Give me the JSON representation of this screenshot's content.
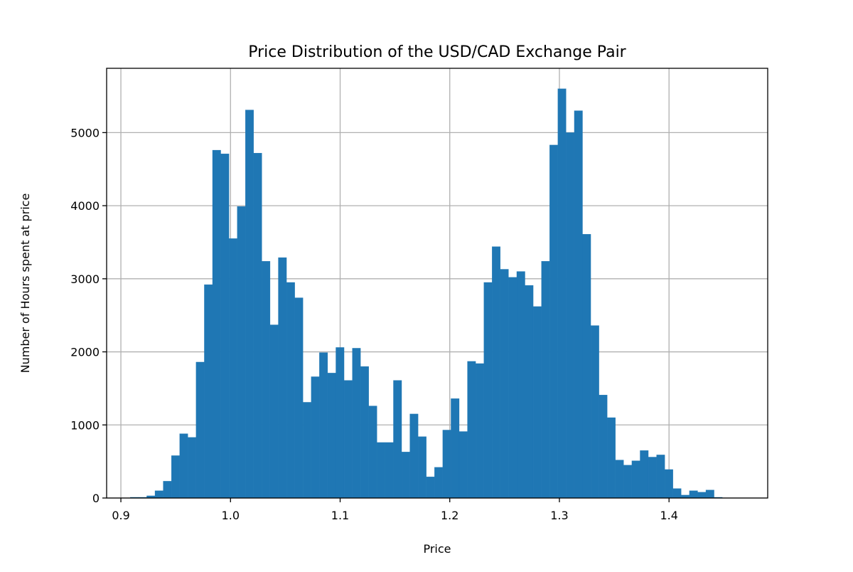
{
  "chart_data": {
    "type": "bar",
    "title": "Price Distribution of the USD/CAD Exchange Pair",
    "xlabel": "Price",
    "ylabel": "Number of Hours spent at price",
    "xlim": [
      0.887,
      1.49
    ],
    "ylim": [
      0,
      5880
    ],
    "grid": true,
    "bar_color": "#1f77b4",
    "grid_color": "#b0b0b0",
    "x_ticks": [
      0.9,
      1.0,
      1.1,
      1.2,
      1.3,
      1.4
    ],
    "x_tick_labels": [
      "0.9",
      "1.0",
      "1.1",
      "1.2",
      "1.3",
      "1.4"
    ],
    "y_ticks": [
      0,
      1000,
      2000,
      3000,
      4000,
      5000
    ],
    "y_tick_labels": [
      "0",
      "1000",
      "2000",
      "3000",
      "4000",
      "5000"
    ],
    "bins": {
      "start": 0.9086,
      "width": 0.0075,
      "values": [
        10,
        10,
        30,
        100,
        230,
        580,
        880,
        830,
        1860,
        2920,
        4760,
        4710,
        3550,
        3990,
        5310,
        4720,
        3240,
        2370,
        3290,
        2950,
        2740,
        1310,
        1660,
        1990,
        1710,
        2060,
        1610,
        2050,
        1800,
        1260,
        760,
        760,
        1610,
        630,
        1150,
        840,
        290,
        420,
        930,
        1360,
        910,
        1870,
        1840,
        2950,
        3440,
        3130,
        3020,
        3100,
        2910,
        2620,
        3240,
        4830,
        5600,
        5000,
        5300,
        3610,
        2360,
        1410,
        1100,
        520,
        450,
        510,
        650,
        560,
        590,
        390,
        130,
        40,
        100,
        80,
        110,
        10
      ]
    }
  }
}
